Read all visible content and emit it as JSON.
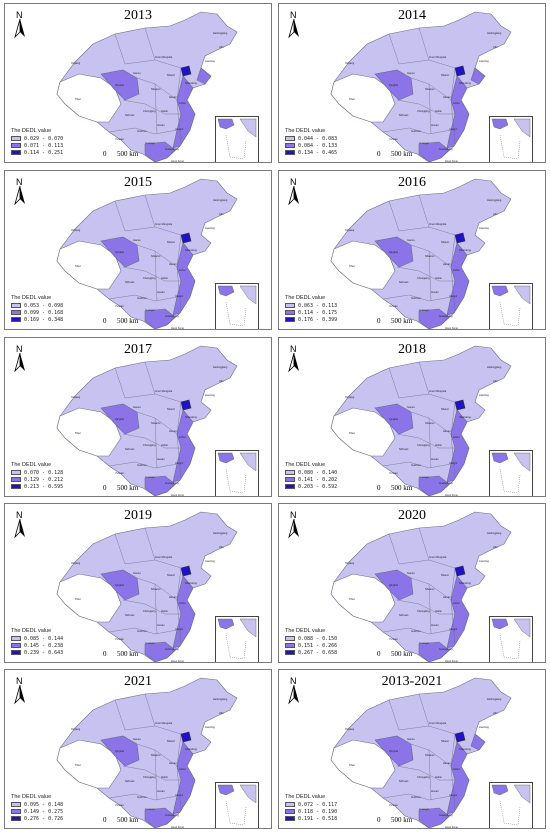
{
  "north_label": "N",
  "legend_title": "The DEDL value",
  "scale": {
    "zero": "0",
    "distance": "500 km"
  },
  "class_colors": [
    "#c7c2f0",
    "#8a74e8",
    "#1f12c8"
  ],
  "panels": [
    {
      "year": "2013",
      "legend": [
        "0.029 - 0.070",
        "0.071 - 0.113",
        "0.114 - 0.251"
      ]
    },
    {
      "year": "2014",
      "legend": [
        "0.044 - 0.083",
        "0.084 - 0.133",
        "0.134 - 0.465"
      ]
    },
    {
      "year": "2015",
      "legend": [
        "0.053 - 0.098",
        "0.099 - 0.168",
        "0.169 - 0.348"
      ]
    },
    {
      "year": "2016",
      "legend": [
        "0.063 - 0.113",
        "0.114 - 0.175",
        "0.176 - 0.399"
      ]
    },
    {
      "year": "2017",
      "legend": [
        "0.070 - 0.128",
        "0.129 - 0.212",
        "0.213 - 0.595"
      ]
    },
    {
      "year": "2018",
      "legend": [
        "0.080 - 0.140",
        "0.141 - 0.202",
        "0.203 - 0.592"
      ]
    },
    {
      "year": "2019",
      "legend": [
        "0.085 - 0.144",
        "0.145 - 0.238",
        "0.239 - 0.643"
      ]
    },
    {
      "year": "2020",
      "legend": [
        "0.088 - 0.150",
        "0.151 - 0.266",
        "0.267 - 0.658"
      ]
    },
    {
      "year": "2021",
      "legend": [
        "0.095 - 0.148",
        "0.149 - 0.275",
        "0.276 - 0.726"
      ]
    },
    {
      "year": "2013-2021",
      "legend": [
        "0.072 - 0.117",
        "0.118 - 0.190",
        "0.191 - 0.518"
      ]
    }
  ]
}
